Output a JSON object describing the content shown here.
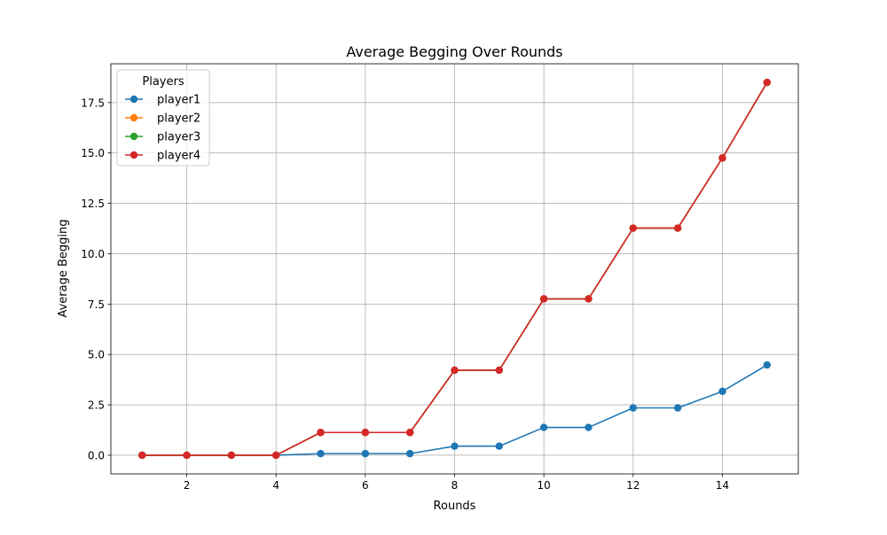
{
  "chart_data": {
    "type": "line",
    "title": "Average Begging Over Rounds",
    "xlabel": "Rounds",
    "ylabel": "Average Begging",
    "xlim": [
      0.3,
      15.7
    ],
    "ylim": [
      -0.925,
      19.425
    ],
    "xticks": [
      2,
      4,
      6,
      8,
      10,
      12,
      14
    ],
    "yticks": [
      0.0,
      2.5,
      5.0,
      7.5,
      10.0,
      12.5,
      15.0,
      17.5
    ],
    "ytick_labels": [
      "0.0",
      "2.5",
      "5.0",
      "7.5",
      "10.0",
      "12.5",
      "15.0",
      "17.5"
    ],
    "grid": true,
    "legend": {
      "title": "Players",
      "placement": "top-left"
    },
    "x": [
      1,
      2,
      3,
      4,
      5,
      6,
      7,
      8,
      9,
      10,
      11,
      12,
      13,
      14,
      15
    ],
    "series": [
      {
        "name": "player1",
        "color": "#1f77b4",
        "values": [
          0,
          0,
          0,
          0,
          0.08,
          0.08,
          0.08,
          0.45,
          0.45,
          1.38,
          1.38,
          2.35,
          2.35,
          3.17,
          4.48
        ]
      },
      {
        "name": "player2",
        "color": "#ff7f0e",
        "values": [
          0,
          0,
          0,
          0,
          1.13,
          1.13,
          1.13,
          4.22,
          4.22,
          7.76,
          7.76,
          11.27,
          11.27,
          14.75,
          18.5
        ]
      },
      {
        "name": "player3",
        "color": "#2ca02c",
        "values": [
          0,
          0,
          0,
          0,
          1.13,
          1.13,
          1.13,
          4.22,
          4.22,
          7.76,
          7.76,
          11.27,
          11.27,
          14.75,
          18.5
        ]
      },
      {
        "name": "player4",
        "color": "#d62728",
        "values": [
          0,
          0,
          0,
          0,
          1.13,
          1.13,
          1.13,
          4.22,
          4.22,
          7.76,
          7.76,
          11.27,
          11.27,
          14.75,
          18.5
        ]
      }
    ]
  }
}
